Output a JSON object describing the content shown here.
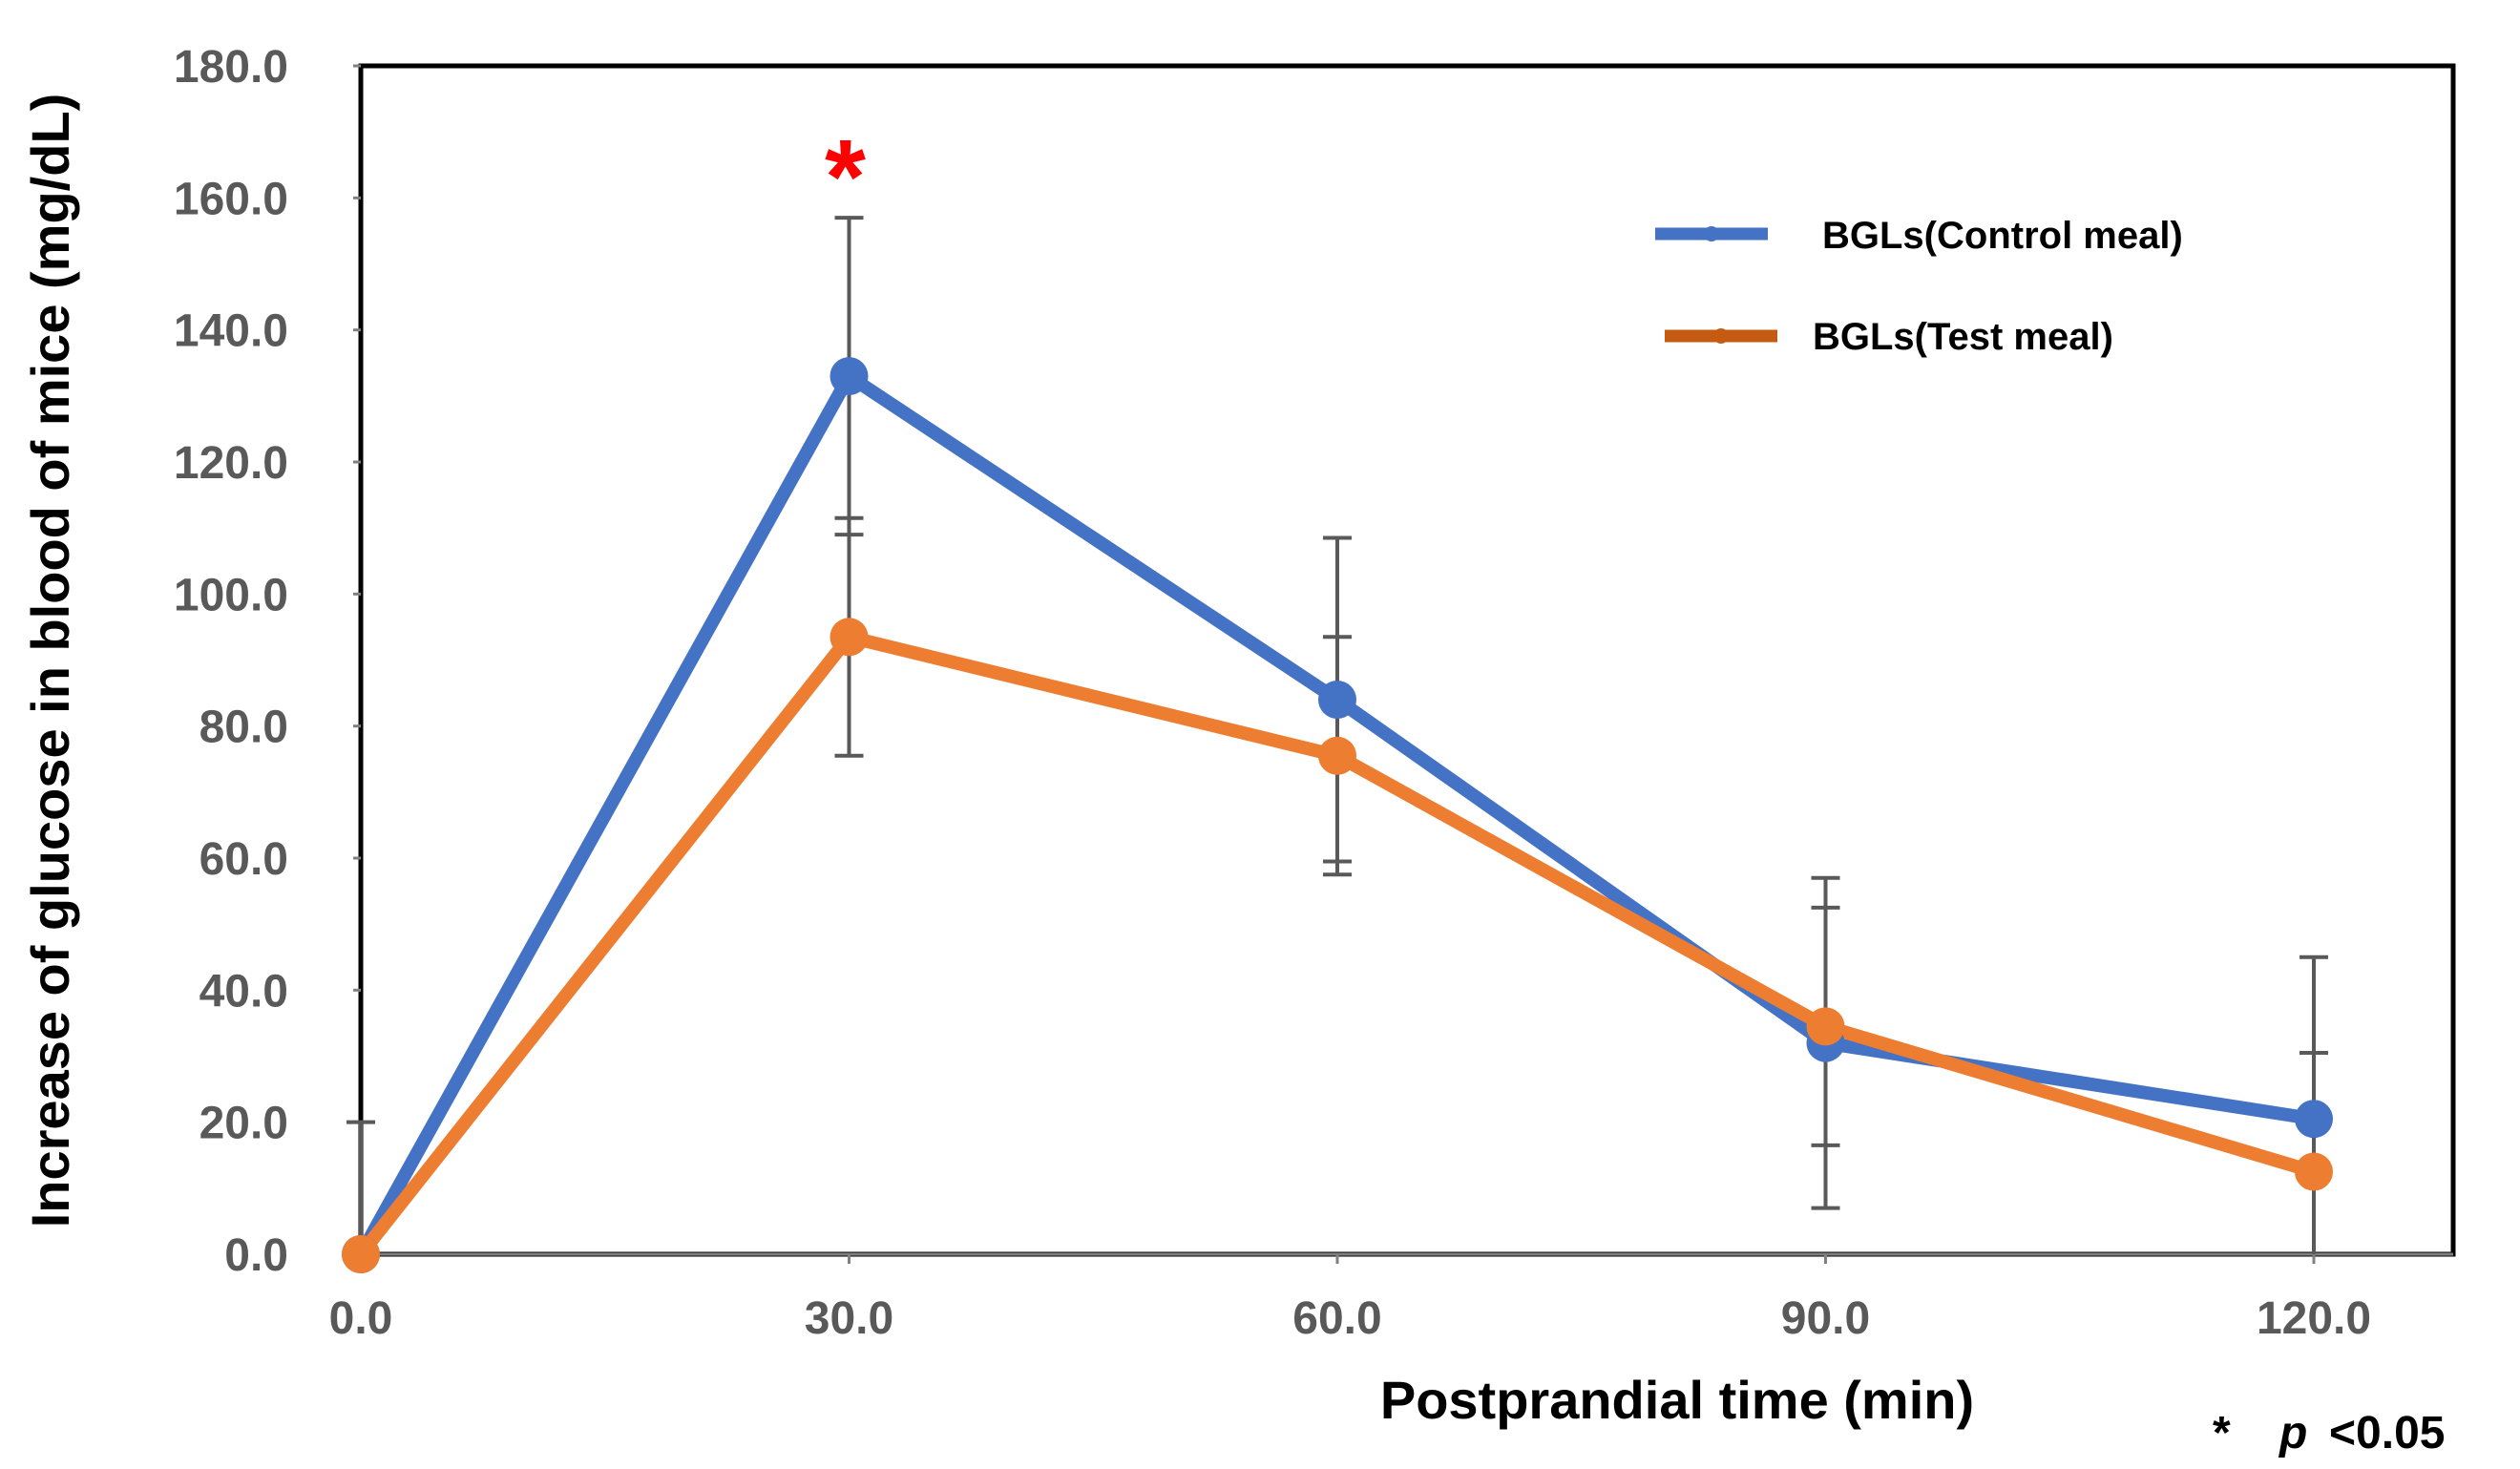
{
  "chart_data": {
    "type": "line",
    "title": "",
    "xlabel": "Postprandial time (min)",
    "ylabel": "Increase of glucose in blood of mice (mg/dL)",
    "x": [
      0,
      30,
      60,
      90,
      120
    ],
    "x_tick_labels": [
      "0.0",
      "30.0",
      "60.0",
      "90.0",
      "120.0"
    ],
    "xlim": [
      0,
      130
    ],
    "ylim": [
      0,
      180
    ],
    "y_ticks": [
      0,
      20,
      40,
      60,
      80,
      100,
      120,
      140,
      160,
      180
    ],
    "y_tick_labels": [
      "0.0",
      "20.0",
      "40.0",
      "60.0",
      "80.0",
      "100.0",
      "120.0",
      "140.0",
      "160.0",
      "180.0"
    ],
    "grid": false,
    "legend_position": "top-right",
    "series": [
      {
        "name": "BGLs(Control meal)",
        "color": "#4472c4",
        "values": [
          0,
          133,
          84,
          32,
          20.5
        ],
        "error": [
          20,
          24,
          24.5,
          25,
          24.5
        ]
      },
      {
        "name": "BGLs(Test meal)",
        "color": "#ed7d31",
        "values": [
          0,
          93.5,
          75.5,
          34.5,
          12.5
        ],
        "error": [
          0,
          18,
          18,
          18,
          18
        ]
      }
    ],
    "annotations": [
      {
        "text": "*",
        "x": 30,
        "color": "#ff0000"
      }
    ],
    "footnote": {
      "star": "*",
      "p_label": "p",
      "threshold": "<0.05"
    }
  }
}
